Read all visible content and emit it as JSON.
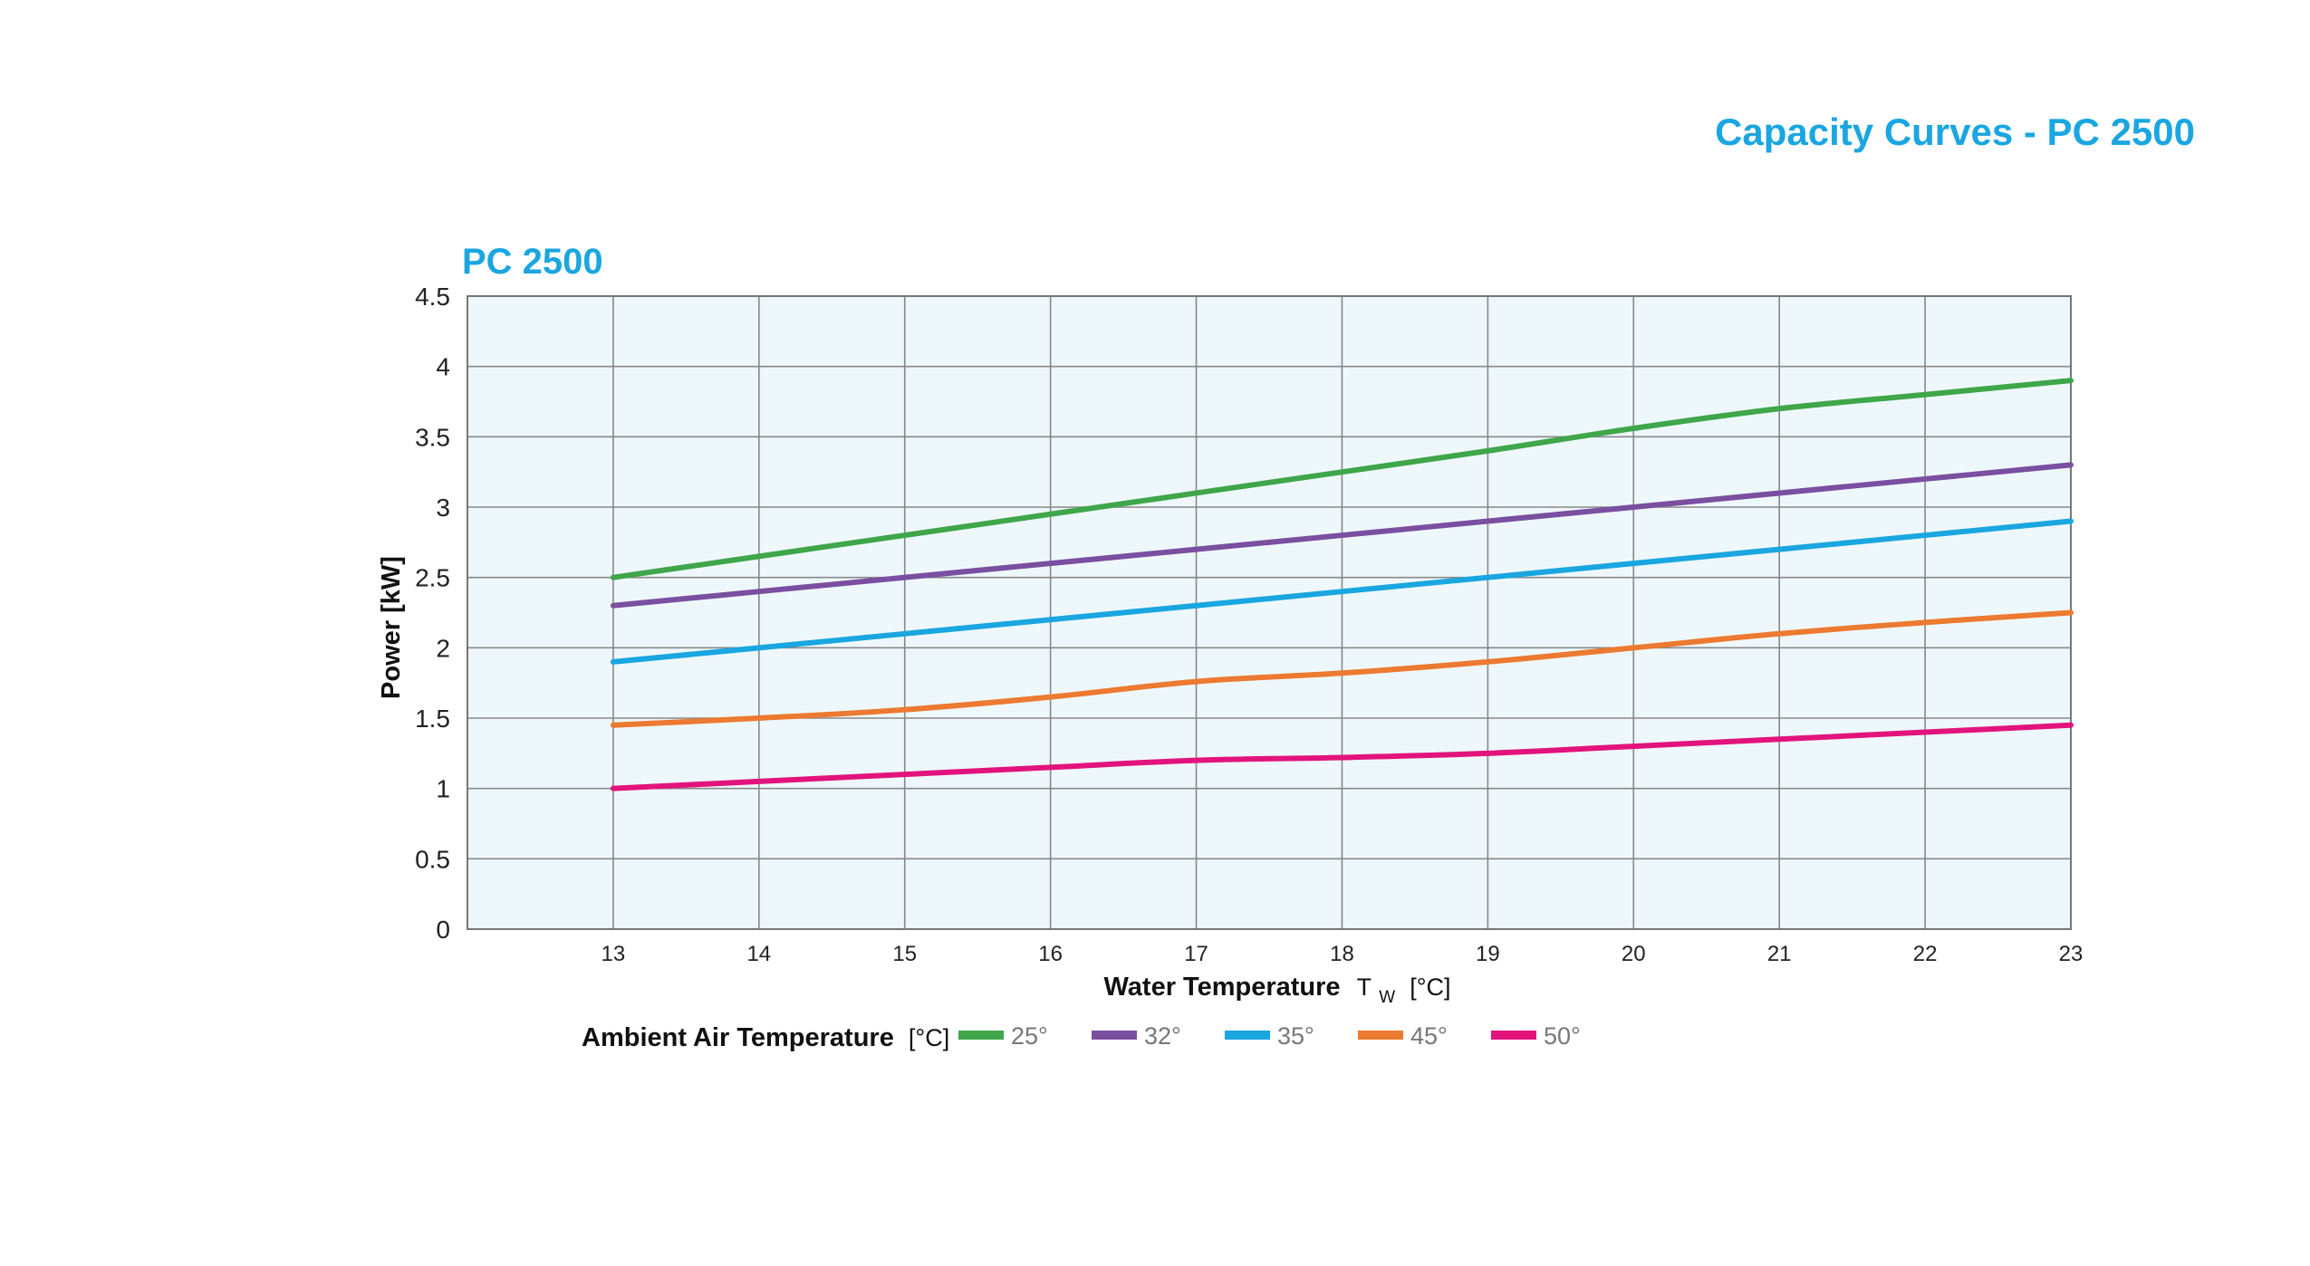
{
  "page": {
    "title": "Capacity Curves - PC 2500"
  },
  "chart_data": {
    "type": "line",
    "title": "PC 2500",
    "xlabel": "Water Temperature",
    "xlabel_symbol": "T",
    "xlabel_subscript": "W",
    "xlabel_unit": "[°C]",
    "ylabel": "Power [kW]",
    "x": [
      13,
      14,
      15,
      16,
      17,
      18,
      19,
      20,
      21,
      22,
      23
    ],
    "xlim": [
      12,
      23
    ],
    "ylim": [
      0,
      4.5
    ],
    "x_ticks": [
      "13",
      "14",
      "15",
      "16",
      "17",
      "18",
      "19",
      "20",
      "21",
      "22",
      "23"
    ],
    "y_ticks": [
      "0",
      "0.5",
      "1",
      "1.5",
      "2",
      "2.5",
      "3",
      "3.5",
      "4",
      "4.5"
    ],
    "grid": true,
    "plot_background": "#eef8fc",
    "grid_color": "#888888",
    "legend": {
      "title": "Ambient Air Temperature",
      "unit": "[°C]",
      "placement": "bottom"
    },
    "series": [
      {
        "name": "25°",
        "color": "#3fa64a",
        "values": [
          2.5,
          2.65,
          2.8,
          2.95,
          3.1,
          3.25,
          3.4,
          3.56,
          3.7,
          3.8,
          3.9
        ]
      },
      {
        "name": "32°",
        "color": "#7b4fa0",
        "values": [
          2.3,
          2.4,
          2.5,
          2.6,
          2.7,
          2.8,
          2.9,
          3.0,
          3.1,
          3.2,
          3.3
        ]
      },
      {
        "name": "35°",
        "color": "#1aa6e0",
        "values": [
          1.9,
          2.0,
          2.1,
          2.2,
          2.3,
          2.4,
          2.5,
          2.6,
          2.7,
          2.8,
          2.9
        ]
      },
      {
        "name": "45°",
        "color": "#ec7a30",
        "values": [
          1.45,
          1.5,
          1.56,
          1.65,
          1.76,
          1.82,
          1.9,
          2.0,
          2.1,
          2.18,
          2.25
        ]
      },
      {
        "name": "50°",
        "color": "#e2147c",
        "values": [
          1.0,
          1.05,
          1.1,
          1.15,
          1.2,
          1.22,
          1.25,
          1.3,
          1.35,
          1.4,
          1.45
        ]
      }
    ]
  }
}
